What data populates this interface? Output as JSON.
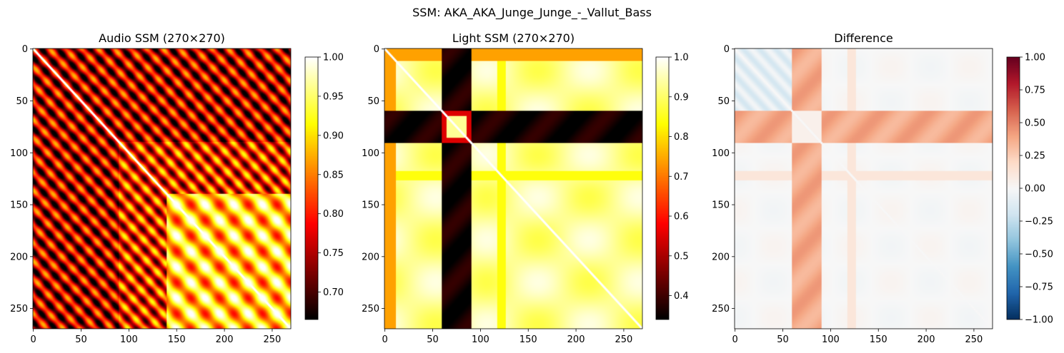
{
  "suptitle": "SSM: AKA_AKA_Junge_Junge_-_Vallut_Bass",
  "chart_data": [
    {
      "type": "heatmap",
      "title": "Audio SSM (270×270)",
      "size": 270,
      "colormap": "hot",
      "vmin": 0.665,
      "vmax": 1.0,
      "xticks": [
        0,
        50,
        100,
        150,
        200,
        250
      ],
      "yticks": [
        0,
        50,
        100,
        150,
        200,
        250
      ],
      "colorbar_ticks": [
        0.7,
        0.75,
        0.8,
        0.85,
        0.9,
        0.95,
        1.0
      ],
      "colorbar_labels": [
        "0.70",
        "0.75",
        "0.80",
        "0.85",
        "0.90",
        "0.95",
        "1.00"
      ],
      "structure": "diagonal stripes with period ~17 frames in frames 0-140; bright near-1.0 block with ring pattern in frames 140-270"
    },
    {
      "type": "heatmap",
      "title": "Light SSM (270×270)",
      "size": 270,
      "colormap": "hot",
      "vmin": 0.34,
      "vmax": 1.0,
      "xticks": [
        0,
        50,
        100,
        150,
        200,
        250
      ],
      "yticks": [
        0,
        50,
        100,
        150,
        200,
        250
      ],
      "colorbar_ticks": [
        0.4,
        0.5,
        0.6,
        0.7,
        0.8,
        0.9,
        1.0
      ],
      "colorbar_labels": [
        "0.4",
        "0.5",
        "0.6",
        "0.7",
        "0.8",
        "0.9",
        "1.0"
      ],
      "structure": "dark band at frames ~60-90 against bright-yellow background; orange strip frames 0-12; light diagonal"
    },
    {
      "type": "heatmap",
      "title": "Difference",
      "size": 270,
      "colormap": "RdBu_r",
      "vmin": -1.0,
      "vmax": 1.0,
      "xticks": [
        0,
        50,
        100,
        150,
        200,
        250
      ],
      "yticks": [
        0,
        50,
        100,
        150,
        200,
        250
      ],
      "colorbar_ticks": [
        -1.0,
        -0.75,
        -0.5,
        -0.25,
        0.0,
        0.25,
        0.5,
        0.75,
        1.0
      ],
      "colorbar_labels": [
        "−1.00",
        "−0.75",
        "−0.50",
        "−0.25",
        "0.00",
        "0.25",
        "0.50",
        "0.75",
        "1.00"
      ],
      "structure": "red cross band (~+0.4) at frames ~60-90; pale blue (~-0.1) over frames 0-60; near-zero elsewhere"
    }
  ]
}
